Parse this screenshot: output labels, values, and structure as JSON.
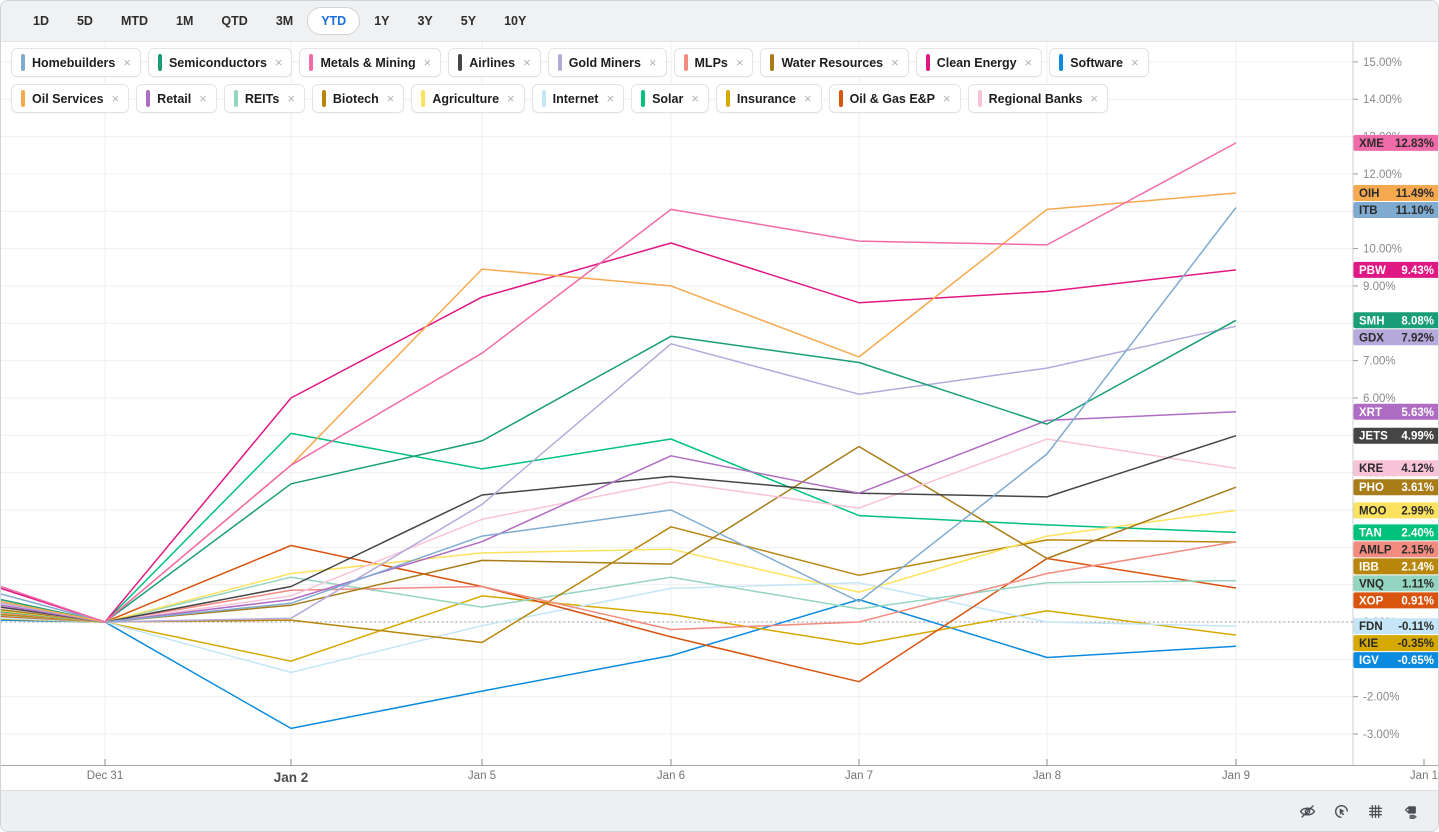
{
  "header": {
    "ranges": [
      "1D",
      "5D",
      "MTD",
      "1M",
      "QTD",
      "3M",
      "YTD",
      "1Y",
      "3Y",
      "5Y",
      "10Y"
    ],
    "active_range": "YTD"
  },
  "chips": [
    {
      "label": "Homebuilders",
      "color": "#7fabd0"
    },
    {
      "label": "Semiconductors",
      "color": "#1a9e77"
    },
    {
      "label": "Metals & Mining",
      "color": "#f06ba8"
    },
    {
      "label": "Airlines",
      "color": "#454545"
    },
    {
      "label": "Gold Miners",
      "color": "#b5aadb"
    },
    {
      "label": "MLPs",
      "color": "#f28b80"
    },
    {
      "label": "Water Resources",
      "color": "#a87c18"
    },
    {
      "label": "Clean Energy",
      "color": "#e01884"
    },
    {
      "label": "Software",
      "color": "#0b8be0"
    },
    {
      "label": "Oil Services",
      "color": "#f7a94f"
    },
    {
      "label": "Retail",
      "color": "#af6cc3"
    },
    {
      "label": "REITs",
      "color": "#93d5c0"
    },
    {
      "label": "Biotech",
      "color": "#b8860b"
    },
    {
      "label": "Agriculture",
      "color": "#fbe25f"
    },
    {
      "label": "Internet",
      "color": "#c4e6f6"
    },
    {
      "label": "Solar",
      "color": "#00c27d"
    },
    {
      "label": "Insurance",
      "color": "#d6a900"
    },
    {
      "label": "Oil & Gas E&P",
      "color": "#d9540e"
    },
    {
      "label": "Regional Banks",
      "color": "#f8c3d8"
    }
  ],
  "chart_data": {
    "type": "line",
    "unit": "percent_change",
    "x_labels": [
      "Dec 31",
      "Jan 2",
      "Jan 5",
      "Jan 6",
      "Jan 7",
      "Jan 8",
      "Jan 9"
    ],
    "x_label_partial_right": "Jan 1",
    "y_axis": {
      "min": -3,
      "max": 15,
      "tick_step": 1,
      "tick_format": "0.00%"
    },
    "zero_line_dotted": true,
    "series": [
      {
        "ticker": "XME",
        "sector": "Metals & Mining",
        "color": "#f06ba8",
        "label_text": "#2b2b2b",
        "change_pct": 12.83,
        "pre": 0.95,
        "values": [
          0,
          4.2,
          7.2,
          11.05,
          10.2,
          10.1,
          12.83
        ]
      },
      {
        "ticker": "OIH",
        "sector": "Oil Services",
        "color": "#f7a94f",
        "label_text": "#2b2b2b",
        "change_pct": 11.49,
        "pre": 0.55,
        "values": [
          0,
          4.2,
          9.45,
          9.0,
          7.1,
          11.05,
          11.49
        ]
      },
      {
        "ticker": "ITB",
        "sector": "Homebuilders",
        "color": "#7fabd0",
        "label_text": "#2b2b2b",
        "change_pct": 11.1,
        "pre": 0.75,
        "values": [
          0,
          0.5,
          2.3,
          3.0,
          0.55,
          4.5,
          11.1
        ]
      },
      {
        "ticker": "PBW",
        "sector": "Clean Energy",
        "color": "#e01884",
        "label_text": "#ffffff",
        "change_pct": 9.43,
        "pre": 0.9,
        "values": [
          0,
          6.0,
          8.7,
          10.15,
          8.55,
          8.85,
          9.43
        ]
      },
      {
        "ticker": "SMH",
        "sector": "Semiconductors",
        "color": "#1a9e77",
        "label_text": "#ffffff",
        "change_pct": 8.08,
        "pre": 0.6,
        "values": [
          0,
          3.7,
          4.85,
          7.65,
          6.95,
          5.3,
          8.08
        ]
      },
      {
        "ticker": "GDX",
        "sector": "Gold Miners",
        "color": "#b5aadb",
        "label_text": "#2b2b2b",
        "change_pct": 7.92,
        "pre": 0.5,
        "values": [
          0,
          0.1,
          3.15,
          7.45,
          6.1,
          6.8,
          7.92
        ]
      },
      {
        "ticker": "XRT",
        "sector": "Retail",
        "color": "#af6cc3",
        "label_text": "#ffffff",
        "change_pct": 5.63,
        "pre": 0.45,
        "values": [
          0,
          0.6,
          2.15,
          4.45,
          3.45,
          5.4,
          5.63
        ]
      },
      {
        "ticker": "JETS",
        "sector": "Airlines",
        "color": "#454545",
        "label_text": "#ffffff",
        "change_pct": 4.99,
        "pre": 0.4,
        "values": [
          0,
          0.95,
          3.4,
          3.9,
          3.45,
          3.35,
          4.99
        ]
      },
      {
        "ticker": "KRE",
        "sector": "Regional Banks",
        "color": "#f8c3d8",
        "label_text": "#2b2b2b",
        "change_pct": 4.12,
        "pre": 0.38,
        "values": [
          0,
          0.7,
          2.75,
          3.75,
          3.05,
          4.9,
          4.12
        ]
      },
      {
        "ticker": "PHO",
        "sector": "Water Resources",
        "color": "#a87c18",
        "label_text": "#ffffff",
        "change_pct": 3.61,
        "pre": 0.33,
        "values": [
          0,
          0.45,
          1.65,
          1.55,
          4.7,
          1.7,
          3.61
        ]
      },
      {
        "ticker": "MOO",
        "sector": "Agriculture",
        "color": "#fbe25f",
        "label_text": "#2b2b2b",
        "change_pct": 2.99,
        "pre": 0.3,
        "values": [
          0,
          1.3,
          1.85,
          1.95,
          0.8,
          2.3,
          2.99
        ]
      },
      {
        "ticker": "TAN",
        "sector": "Solar",
        "color": "#00c27d",
        "label_text": "#ffffff",
        "change_pct": 2.4,
        "pre": 0.28,
        "values": [
          0,
          5.05,
          4.1,
          4.9,
          2.85,
          2.6,
          2.4
        ]
      },
      {
        "ticker": "AMLP",
        "sector": "MLPs",
        "color": "#f28b80",
        "label_text": "#2b2b2b",
        "change_pct": 2.15,
        "pre": 0.25,
        "values": [
          0,
          0.85,
          0.95,
          -0.2,
          0.0,
          1.3,
          2.15
        ]
      },
      {
        "ticker": "IBB",
        "sector": "Biotech",
        "color": "#b8860b",
        "label_text": "#ffffff",
        "change_pct": 2.14,
        "pre": 0.2,
        "values": [
          0,
          0.05,
          -0.55,
          2.55,
          1.25,
          2.2,
          2.14
        ]
      },
      {
        "ticker": "VNQ",
        "sector": "REITs",
        "color": "#93d5c0",
        "label_text": "#2b2b2b",
        "change_pct": 1.11,
        "pre": 0.18,
        "values": [
          0,
          1.2,
          0.4,
          1.2,
          0.35,
          1.05,
          1.11
        ]
      },
      {
        "ticker": "XOP",
        "sector": "Oil & Gas E&P",
        "color": "#d9540e",
        "label_text": "#ffffff",
        "change_pct": 0.91,
        "pre": 0.15,
        "values": [
          0,
          2.05,
          0.95,
          -0.4,
          -1.6,
          1.7,
          0.91
        ]
      },
      {
        "ticker": "FDN",
        "sector": "Internet",
        "color": "#c4e6f6",
        "label_text": "#2b2b2b",
        "change_pct": -0.11,
        "pre": 0.1,
        "values": [
          0,
          -1.35,
          -0.1,
          0.9,
          1.05,
          0.0,
          -0.11
        ]
      },
      {
        "ticker": "KIE",
        "sector": "Insurance",
        "color": "#d6a900",
        "label_text": "#2b2b2b",
        "change_pct": -0.35,
        "pre": 0.08,
        "values": [
          0,
          -1.05,
          0.7,
          0.2,
          -0.6,
          0.3,
          -0.35
        ]
      },
      {
        "ticker": "IGV",
        "sector": "Software",
        "color": "#0b8be0",
        "label_text": "#ffffff",
        "change_pct": -0.65,
        "pre": 0.05,
        "values": [
          0,
          -2.85,
          -1.85,
          -0.9,
          0.6,
          -0.95,
          -0.65
        ]
      }
    ]
  },
  "footer": {
    "icons": [
      "crosshair-off",
      "magnet-cursor",
      "grid",
      "price-labels"
    ]
  }
}
